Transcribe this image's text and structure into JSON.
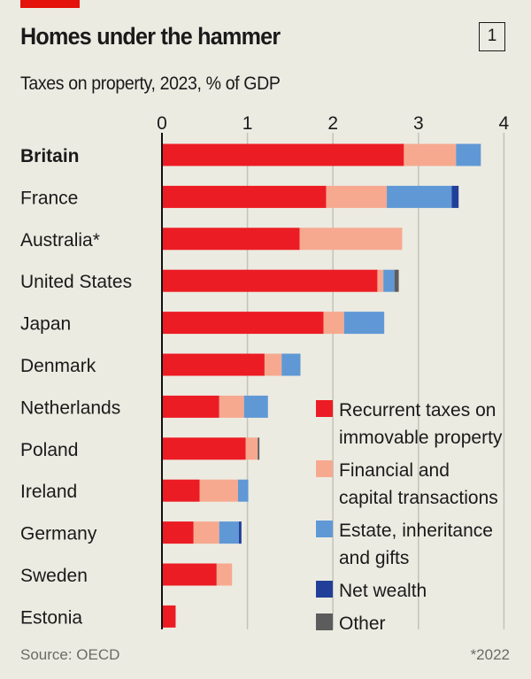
{
  "header": {
    "title": "Homes under the hammer",
    "chart_number": "1",
    "subtitle": "Taxes on property, 2023, % of GDP"
  },
  "footer": {
    "source": "Source: OECD",
    "footnote": "*2022"
  },
  "colors": {
    "accent_bar": "#e3120b",
    "background": "#ecebe2"
  },
  "chart_data": {
    "type": "bar",
    "orientation": "horizontal",
    "stacked": true,
    "title": "Homes under the hammer",
    "subtitle": "Taxes on property, 2023, % of GDP",
    "xlabel": "% of GDP",
    "ylabel": "",
    "xlim": [
      0,
      4
    ],
    "xticks": [
      0,
      1,
      2,
      3,
      4
    ],
    "grid": true,
    "legend_position": "bottom-right",
    "categories": [
      "Britain",
      "France",
      "Australia*",
      "United States",
      "Japan",
      "Denmark",
      "Netherlands",
      "Poland",
      "Ireland",
      "Germany",
      "Sweden",
      "Estonia"
    ],
    "highlight_category": "Britain",
    "series": [
      {
        "name": "Recurrent taxes on immovable property",
        "color": "#ec1c24",
        "values": [
          2.83,
          1.92,
          1.61,
          2.52,
          1.89,
          1.2,
          0.67,
          0.98,
          0.44,
          0.37,
          0.64,
          0.16
        ]
      },
      {
        "name": "Financial and capital transactions",
        "color": "#f7a98f",
        "values": [
          0.61,
          0.71,
          1.2,
          0.07,
          0.24,
          0.2,
          0.29,
          0.14,
          0.45,
          0.3,
          0.18,
          0.0
        ]
      },
      {
        "name": "Estate, inheritance and gifts",
        "color": "#5f98d5",
        "values": [
          0.29,
          0.76,
          0.0,
          0.13,
          0.47,
          0.22,
          0.28,
          0.0,
          0.12,
          0.23,
          0.0,
          0.0
        ]
      },
      {
        "name": "Net wealth",
        "color": "#213f99",
        "values": [
          0.0,
          0.08,
          0.0,
          0.0,
          0.0,
          0.0,
          0.0,
          0.0,
          0.0,
          0.03,
          0.0,
          0.0
        ]
      },
      {
        "name": "Other",
        "color": "#5c5c5c",
        "values": [
          0.0,
          0.0,
          0.0,
          0.05,
          0.0,
          0.0,
          0.0,
          0.02,
          0.0,
          0.0,
          0.0,
          0.0
        ]
      }
    ],
    "legend": [
      {
        "lines": [
          "Recurrent taxes on",
          "immovable property"
        ],
        "color": "#ec1c24"
      },
      {
        "lines": [
          "Financial and",
          "capital transactions"
        ],
        "color": "#f7a98f"
      },
      {
        "lines": [
          "Estate, inheritance",
          "and gifts"
        ],
        "color": "#5f98d5"
      },
      {
        "lines": [
          "Net wealth"
        ],
        "color": "#213f99"
      },
      {
        "lines": [
          "Other"
        ],
        "color": "#5c5c5c"
      }
    ]
  }
}
